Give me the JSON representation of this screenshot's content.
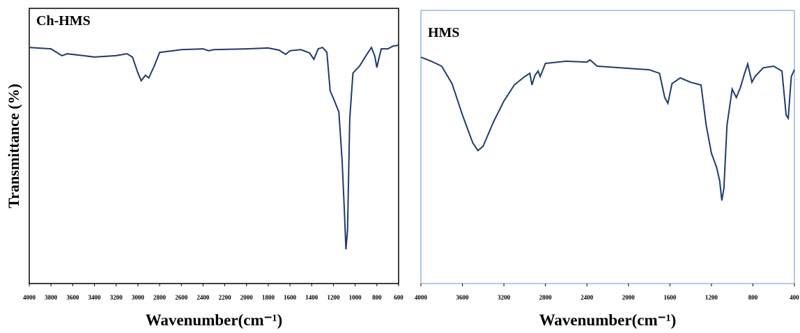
{
  "chart_data": [
    {
      "type": "line",
      "title": "Ch-HMS",
      "y_label": "Transmittance (%)",
      "x_label": "Wavenumber(cm⁻¹)",
      "xlim": [
        4000,
        600
      ],
      "ylim": [
        0,
        100
      ],
      "xticks": [
        4000,
        3800,
        3600,
        3400,
        3200,
        3000,
        2800,
        2600,
        2400,
        2200,
        2000,
        1800,
        1600,
        1400,
        1200,
        1000,
        800,
        600
      ],
      "border_color": "#000000",
      "series": [
        {
          "color": "#1f3a6e",
          "x": [
            4000,
            3800,
            3700,
            3650,
            3500,
            3400,
            3200,
            3100,
            3050,
            3000,
            2970,
            2930,
            2900,
            2850,
            2800,
            2600,
            2400,
            2350,
            2300,
            2000,
            1800,
            1700,
            1640,
            1600,
            1500,
            1420,
            1380,
            1340,
            1300,
            1260,
            1230,
            1200,
            1150,
            1120,
            1100,
            1085,
            1070,
            1050,
            1020,
            960,
            900,
            850,
            820,
            800,
            780,
            760,
            700,
            650,
            600
          ],
          "values": [
            85.8,
            85.3,
            82.8,
            83.5,
            82.8,
            82.3,
            82.8,
            83.5,
            82.3,
            76.5,
            73.7,
            75.7,
            74.7,
            79,
            84,
            85,
            85.3,
            84.6,
            85,
            85.3,
            85.6,
            84.8,
            83.3,
            84.6,
            85,
            83.8,
            81.5,
            85.3,
            85.8,
            84,
            70,
            67.3,
            62.3,
            44.8,
            27,
            12.4,
            19.5,
            60,
            76.5,
            79,
            82.8,
            85.8,
            82.8,
            78.5,
            82,
            85.3,
            85.3,
            86.3,
            86.6
          ]
        }
      ]
    },
    {
      "type": "line",
      "title": "HMS",
      "x_label": "Wavenumber(cm⁻¹)",
      "xlim": [
        4000,
        400
      ],
      "ylim": [
        0,
        100
      ],
      "xticks": [
        4000,
        3600,
        3200,
        2800,
        2400,
        2000,
        1600,
        1200,
        800,
        400
      ],
      "border_color": "#7fa7d8",
      "series": [
        {
          "color": "#1f3a6e",
          "x": [
            4000,
            3900,
            3800,
            3700,
            3600,
            3500,
            3450,
            3400,
            3300,
            3200,
            3100,
            3000,
            2950,
            2930,
            2900,
            2870,
            2850,
            2800,
            2600,
            2400,
            2370,
            2300,
            2000,
            1800,
            1700,
            1650,
            1620,
            1580,
            1500,
            1400,
            1300,
            1250,
            1200,
            1150,
            1120,
            1100,
            1080,
            1050,
            1000,
            960,
            920,
            880,
            850,
            810,
            780,
            700,
            600,
            520,
            480,
            460,
            430,
            400
          ],
          "values": [
            82.9,
            81.4,
            79.6,
            73.2,
            61.7,
            51.5,
            48.7,
            50.3,
            59.2,
            66.8,
            72.7,
            75.8,
            77,
            72.7,
            76.3,
            77.8,
            75.8,
            80.6,
            81.4,
            81.1,
            81.9,
            79.6,
            78.8,
            78.3,
            77,
            68.1,
            66,
            73.2,
            75.3,
            73.7,
            72.7,
            57.9,
            47.7,
            42.6,
            37.5,
            30.4,
            34.9,
            57.9,
            71.2,
            68.1,
            71.9,
            77,
            80.4,
            73.7,
            75.8,
            79,
            79.6,
            77.8,
            61.7,
            60.5,
            75.8,
            78.3
          ]
        }
      ]
    }
  ]
}
